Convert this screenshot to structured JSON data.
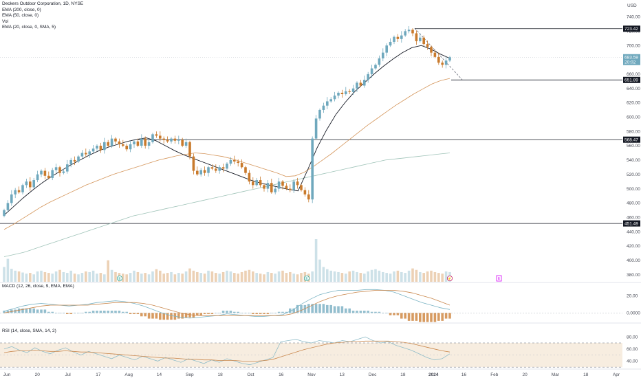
{
  "header": {
    "symbol_title": "Deckers Outdoor Corporation, 1D, NYSE",
    "legend": [
      "EMA (200, close, 0)",
      "EMA (50, close, 0)",
      "Vol",
      "EMA (20, close, 0, SMA, 5)"
    ],
    "currency": "USD"
  },
  "panels": {
    "macd_label": "MACD (12, 26, close, 9, EMA, EMA)",
    "rsi_label": "RSI (14, close, SMA, 14, 2)"
  },
  "price_tags": [
    {
      "value": "723.42",
      "bg": "#131722",
      "fg": "#ffffff"
    },
    {
      "value": "683.59",
      "bg": "#6fa8bd",
      "fg": "#ffffff"
    },
    {
      "value": "20:02",
      "bg": "#6fa8bd",
      "fg": "#ffffff"
    },
    {
      "value": "651.89",
      "bg": "#131722",
      "fg": "#ffffff"
    },
    {
      "value": "568.47",
      "bg": "#131722",
      "fg": "#ffffff"
    },
    {
      "value": "451.49",
      "bg": "#131722",
      "fg": "#ffffff"
    }
  ],
  "colors": {
    "up": "#6fa8bd",
    "down": "#c97a2c",
    "ema200": "#9fc3b8",
    "ema50": "#d4955a",
    "ema20": "#131722",
    "macd_line": "#7ab3c4",
    "macd_signal": "#c9874c",
    "rsi_line": "#8fbcc8",
    "rsi_ma": "#c9874c",
    "rsi_band": "#f7ede0"
  },
  "chart_data": [
    {
      "type": "candlestick",
      "title": "Deckers Outdoor Corporation, 1D, NYSE",
      "price_axis_ticks": [
        740,
        720,
        700,
        680,
        660,
        640,
        620,
        600,
        580,
        560,
        540,
        520,
        500,
        480,
        460,
        440,
        420,
        400,
        380
      ],
      "ylim": [
        370,
        752
      ],
      "time_axis_labels": [
        "Jun",
        "20",
        "Jul",
        "17",
        "Aug",
        "14",
        "Sep",
        "18",
        "Oct",
        "16",
        "Nov",
        "13",
        "Dec",
        "18",
        "2024",
        "16",
        "Feb",
        "20",
        "Mar",
        "18",
        "Apr"
      ],
      "horizontal_levels": [
        723.42,
        651.89,
        568.47,
        451.49
      ],
      "last_price": 683.59,
      "candles_note": "daily OHLC estimated from chart, June 2023 - early Jan 2024",
      "closes": [
        470,
        480,
        492,
        498,
        495,
        505,
        510,
        502,
        512,
        520,
        525,
        518,
        515,
        526,
        530,
        522,
        524,
        534,
        540,
        538,
        545,
        550,
        548,
        552,
        556,
        560,
        554,
        565,
        560,
        570,
        566,
        562,
        560,
        555,
        562,
        566,
        560,
        570,
        560,
        565,
        576,
        574,
        570,
        568,
        566,
        570,
        567,
        568,
        560,
        565,
        545,
        525,
        520,
        526,
        522,
        530,
        528,
        525,
        530,
        528,
        535,
        540,
        538,
        536,
        530,
        522,
        510,
        505,
        512,
        505,
        500,
        508,
        495,
        500,
        510,
        504,
        500,
        498,
        510,
        505,
        498,
        492,
        485,
        570,
        598,
        610,
        616,
        622,
        625,
        630,
        634,
        632,
        636,
        635,
        640,
        648,
        644,
        652,
        660,
        668,
        673,
        682,
        690,
        700,
        705,
        712,
        709,
        714,
        720,
        722,
        717,
        706,
        711,
        702,
        698,
        690,
        684,
        676,
        673,
        679,
        683.59
      ],
      "series": [
        {
          "name": "EMA (200, close, 0)",
          "values": [
            405,
            407,
            409,
            411,
            414,
            417,
            420,
            423,
            426,
            429,
            432,
            435,
            438,
            441,
            444,
            447,
            450,
            453,
            456,
            459,
            462,
            464,
            466,
            468,
            470,
            472,
            474,
            476,
            478,
            480,
            482,
            484,
            486,
            488,
            490,
            492,
            494,
            496,
            498,
            500,
            502,
            504,
            506,
            508,
            510,
            512,
            514,
            516,
            518,
            520,
            522,
            524,
            526,
            528,
            530,
            532,
            534,
            536,
            538,
            540,
            541,
            542,
            543,
            544,
            545,
            546,
            547,
            548,
            549,
            550
          ]
        },
        {
          "name": "EMA (50, close, 0)",
          "values": [
            443,
            450,
            458,
            466,
            474,
            481,
            487,
            493,
            499,
            505,
            510,
            515,
            520,
            524,
            528,
            532,
            536,
            540,
            543,
            546,
            548,
            550,
            549,
            547,
            545,
            542,
            538,
            534,
            530,
            526,
            522,
            517,
            518,
            523,
            531,
            540,
            549,
            559,
            569,
            579,
            589,
            598,
            607,
            616,
            624,
            632,
            639,
            646,
            651,
            654
          ]
        },
        {
          "name": "EMA (20, close, 0, SMA, 5)",
          "values": [
            463,
            475,
            487,
            498,
            508,
            517,
            525,
            533,
            540,
            547,
            553,
            558,
            562,
            566,
            569,
            571,
            567,
            560,
            553,
            547,
            542,
            537,
            532,
            527,
            522,
            517,
            512,
            508,
            505,
            502,
            499,
            497,
            526,
            557,
            582,
            604,
            621,
            636,
            648,
            660,
            671,
            681,
            690,
            697,
            700,
            695,
            688,
            682
          ]
        }
      ]
    },
    {
      "type": "bar",
      "title": "Vol",
      "values_note": "relative daily volume, peak at late-October earnings gap",
      "values": [
        40,
        62,
        35,
        30,
        28,
        25,
        22,
        24,
        20,
        28,
        30,
        26,
        24,
        22,
        28,
        32,
        26,
        24,
        30,
        22,
        20,
        24,
        28,
        26,
        30,
        22,
        24,
        20,
        58,
        32,
        26,
        24,
        22,
        20,
        24,
        30,
        26,
        22,
        24,
        20,
        28,
        34,
        30,
        22,
        24,
        26,
        20,
        24,
        22,
        28,
        36,
        30,
        26,
        24,
        22,
        30,
        28,
        24,
        22,
        26,
        30,
        28,
        24,
        22,
        26,
        30,
        32,
        28,
        24,
        22,
        20,
        26,
        24,
        22,
        28,
        30,
        24,
        26,
        22,
        20,
        24,
        26,
        22,
        28,
        115,
        60,
        40,
        34,
        30,
        28,
        26,
        24,
        22,
        28,
        30,
        26,
        24,
        22,
        28,
        32,
        34,
        30,
        26,
        24,
        22,
        28,
        30,
        26,
        24,
        30,
        36,
        32,
        26,
        24,
        28,
        30,
        26,
        24,
        22,
        28,
        26
      ]
    },
    {
      "type": "line",
      "title": "MACD (12, 26, close, 9, EMA, EMA)",
      "y_ticks": [
        20.0,
        0.0
      ],
      "y_tick_labels": [
        "20.00",
        "0.0000"
      ],
      "ylim": [
        -10,
        28
      ],
      "series": [
        {
          "name": "MACD",
          "values": [
            2,
            5,
            8,
            10,
            11,
            10,
            9,
            8,
            9,
            10,
            12,
            13,
            14,
            13,
            11,
            8,
            4,
            0,
            -3,
            -5,
            -6,
            -5,
            -4,
            -3,
            -1,
            -2,
            -3,
            -4,
            -4,
            -3,
            -2,
            3,
            10,
            16,
            21,
            24,
            26,
            26,
            26,
            27,
            27,
            26,
            24,
            20,
            16,
            12,
            9,
            6,
            4
          ]
        },
        {
          "name": "Signal",
          "values": [
            0,
            2,
            4,
            6,
            8,
            9,
            9,
            9,
            9,
            9,
            10,
            11,
            12,
            12,
            12,
            11,
            9,
            6,
            3,
            0,
            -2,
            -3,
            -3,
            -3,
            -3,
            -3,
            -3,
            -3,
            -3,
            -3,
            -3,
            -1,
            3,
            8,
            13,
            17,
            20,
            22,
            24,
            25,
            26,
            26,
            26,
            25,
            23,
            20,
            17,
            13,
            9
          ]
        }
      ]
    },
    {
      "type": "line",
      "title": "RSI (14, close, SMA, 14, 2)",
      "y_ticks": [
        80.0,
        60.0,
        40.0
      ],
      "y_tick_labels": [
        "80.00",
        "60.00",
        "40.00"
      ],
      "ylim": [
        28,
        87
      ],
      "band": [
        30,
        70
      ],
      "series": [
        {
          "name": "RSI",
          "values": [
            60,
            64,
            58,
            54,
            62,
            56,
            52,
            58,
            62,
            55,
            50,
            56,
            52,
            48,
            44,
            50,
            46,
            42,
            48,
            44,
            40,
            46,
            42,
            38,
            44,
            40,
            36,
            42,
            38,
            44,
            40,
            36,
            34,
            38,
            42,
            46,
            72,
            74,
            76,
            72,
            70,
            74,
            72,
            70,
            74,
            72,
            76,
            80,
            74,
            70,
            72,
            66,
            62,
            58,
            52,
            46,
            42,
            44,
            52
          ]
        },
        {
          "name": "RSI-based MA",
          "values": [
            54,
            56,
            57,
            57,
            58,
            57,
            56,
            56,
            57,
            56,
            55,
            55,
            54,
            53,
            52,
            51,
            50,
            49,
            48,
            47,
            46,
            45,
            45,
            44,
            43,
            43,
            42,
            42,
            41,
            41,
            41,
            40,
            40,
            40,
            41,
            43,
            47,
            51,
            55,
            59,
            62,
            65,
            68,
            70,
            71,
            72,
            72,
            73,
            73,
            73,
            73,
            72,
            71,
            69,
            66,
            63,
            60,
            57,
            55
          ]
        }
      ]
    }
  ]
}
